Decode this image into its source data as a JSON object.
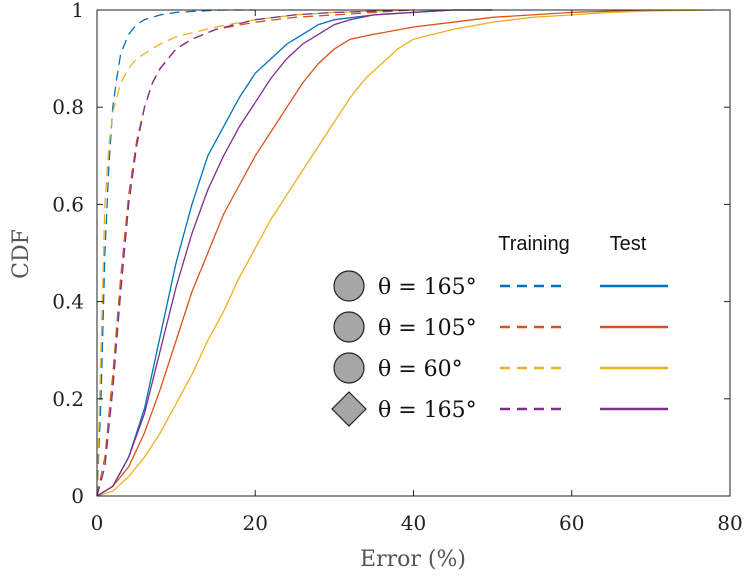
{
  "chart_data": {
    "type": "line",
    "title": "",
    "xlabel": "Error (%)",
    "ylabel": "CDF",
    "xlim": [
      0,
      80
    ],
    "ylim": [
      0,
      1
    ],
    "xticks": [
      "0",
      "20",
      "40",
      "60",
      "80"
    ],
    "yticks": [
      "0",
      "0.2",
      "0.4",
      "0.6",
      "0.8",
      "1"
    ],
    "legend": {
      "position": "center-right",
      "header_training": "Training",
      "header_test": "Test",
      "rows": [
        {
          "marker": "circle",
          "label": "θ = 165°",
          "color": "#0072BD"
        },
        {
          "marker": "circle",
          "label": "θ = 105°",
          "color": "#D95319"
        },
        {
          "marker": "circle",
          "label": "θ = 60°",
          "color": "#EDB120"
        },
        {
          "marker": "diamond",
          "label": "θ = 165°",
          "color": "#7E2F8E"
        }
      ]
    },
    "series": [
      {
        "group": "training",
        "style": "dashed",
        "color": "#0072BD",
        "x": [
          0,
          0.5,
          1,
          1.5,
          2,
          2.5,
          3,
          4,
          5,
          6,
          8,
          10,
          13,
          16,
          20
        ],
        "y": [
          0,
          0.2,
          0.5,
          0.68,
          0.8,
          0.86,
          0.91,
          0.95,
          0.97,
          0.98,
          0.99,
          0.995,
          0.998,
          1,
          1
        ]
      },
      {
        "group": "training",
        "style": "dashed",
        "color": "#D95319",
        "x": [
          0,
          1,
          2,
          3,
          4,
          5,
          6,
          7,
          8,
          10,
          12,
          15,
          20,
          25,
          30,
          40
        ],
        "y": [
          0,
          0.08,
          0.25,
          0.45,
          0.62,
          0.73,
          0.8,
          0.85,
          0.88,
          0.92,
          0.94,
          0.96,
          0.975,
          0.985,
          0.99,
          1
        ]
      },
      {
        "group": "training",
        "style": "dashed",
        "color": "#EDB120",
        "x": [
          0,
          0.5,
          1,
          1.5,
          2,
          3,
          4,
          5,
          6,
          8,
          10,
          15,
          20,
          25,
          30,
          40,
          50
        ],
        "y": [
          0,
          0.3,
          0.6,
          0.72,
          0.79,
          0.85,
          0.88,
          0.9,
          0.91,
          0.93,
          0.945,
          0.965,
          0.98,
          0.99,
          0.995,
          1,
          1
        ]
      },
      {
        "group": "training",
        "style": "dashed",
        "color": "#7E2F8E",
        "x": [
          0,
          1,
          2,
          3,
          4,
          5,
          6,
          7,
          8,
          10,
          12,
          15,
          20,
          25,
          30,
          40
        ],
        "y": [
          0,
          0.06,
          0.22,
          0.42,
          0.6,
          0.72,
          0.8,
          0.85,
          0.88,
          0.92,
          0.94,
          0.96,
          0.98,
          0.99,
          0.995,
          1
        ]
      },
      {
        "group": "test",
        "style": "solid",
        "color": "#0072BD",
        "x": [
          0,
          2,
          4,
          6,
          8,
          10,
          12,
          14,
          16,
          18,
          20,
          22,
          24,
          26,
          28,
          30,
          35,
          40,
          45,
          50
        ],
        "y": [
          0,
          0.02,
          0.08,
          0.18,
          0.33,
          0.48,
          0.6,
          0.7,
          0.76,
          0.82,
          0.87,
          0.9,
          0.93,
          0.95,
          0.97,
          0.98,
          0.99,
          0.995,
          1,
          1
        ]
      },
      {
        "group": "test",
        "style": "solid",
        "color": "#D95319",
        "x": [
          0,
          2,
          4,
          6,
          8,
          10,
          12,
          14,
          16,
          18,
          20,
          22,
          24,
          26,
          28,
          30,
          32,
          35,
          40,
          45,
          50,
          55,
          60,
          70
        ],
        "y": [
          0,
          0.02,
          0.06,
          0.13,
          0.22,
          0.32,
          0.42,
          0.5,
          0.58,
          0.64,
          0.7,
          0.75,
          0.8,
          0.85,
          0.89,
          0.92,
          0.94,
          0.95,
          0.965,
          0.975,
          0.985,
          0.99,
          0.995,
          1
        ]
      },
      {
        "group": "test",
        "style": "solid",
        "color": "#EDB120",
        "x": [
          0,
          2,
          4,
          6,
          8,
          10,
          12,
          14,
          16,
          18,
          20,
          22,
          24,
          26,
          28,
          30,
          32,
          34,
          36,
          38,
          40,
          45,
          50,
          55,
          60,
          65,
          70,
          78
        ],
        "y": [
          0,
          0.01,
          0.04,
          0.08,
          0.13,
          0.19,
          0.25,
          0.32,
          0.38,
          0.45,
          0.51,
          0.57,
          0.62,
          0.67,
          0.72,
          0.77,
          0.82,
          0.86,
          0.89,
          0.92,
          0.94,
          0.96,
          0.975,
          0.985,
          0.99,
          0.995,
          0.998,
          1
        ]
      },
      {
        "group": "test",
        "style": "solid",
        "color": "#7E2F8E",
        "x": [
          0,
          2,
          4,
          6,
          8,
          10,
          12,
          14,
          16,
          18,
          20,
          22,
          24,
          26,
          28,
          30,
          32,
          35,
          40,
          45,
          50
        ],
        "y": [
          0,
          0.02,
          0.08,
          0.17,
          0.3,
          0.43,
          0.54,
          0.63,
          0.7,
          0.76,
          0.81,
          0.86,
          0.9,
          0.93,
          0.95,
          0.97,
          0.98,
          0.99,
          0.995,
          1,
          1
        ]
      }
    ]
  }
}
